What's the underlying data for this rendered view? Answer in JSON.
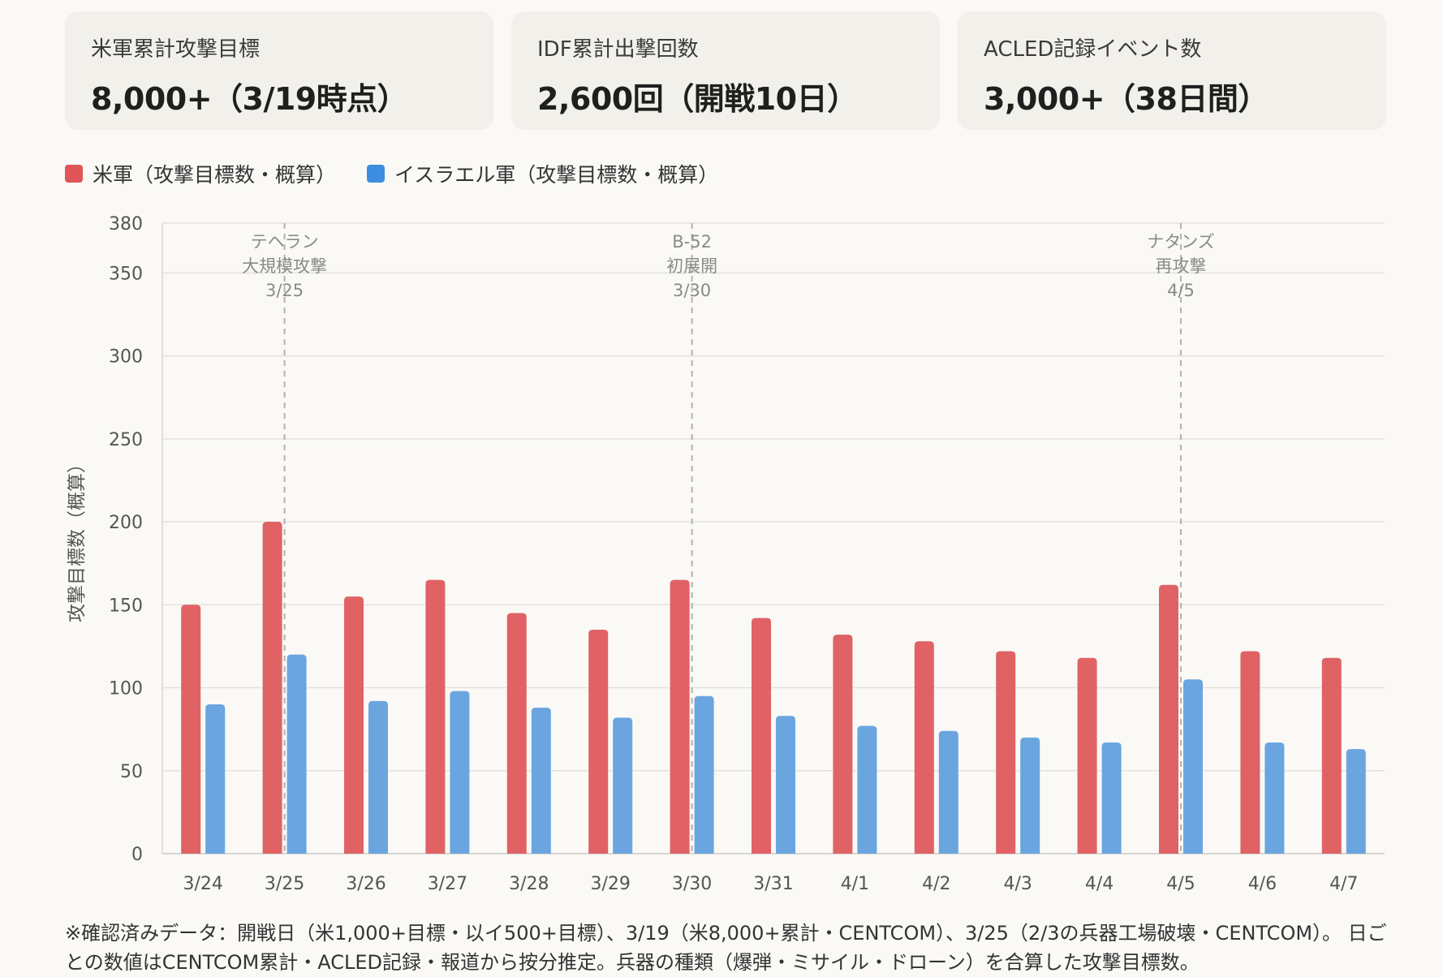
{
  "cards": [
    {
      "label": "米軍累計攻撃目標",
      "value": "8,000+（3/19時点）"
    },
    {
      "label": "IDF累計出撃回数",
      "value": "2,600回（開戦10日）"
    },
    {
      "label": "ACLED記録イベント数",
      "value": "3,000+（38日間）"
    }
  ],
  "chart_data": {
    "type": "bar",
    "categories": [
      "3/24",
      "3/25",
      "3/26",
      "3/27",
      "3/28",
      "3/29",
      "3/30",
      "3/31",
      "4/1",
      "4/2",
      "4/3",
      "4/4",
      "4/5",
      "4/6",
      "4/7"
    ],
    "series": [
      {
        "name": "米軍（攻撃目標数・概算）",
        "color": "#e06265",
        "values": [
          150,
          200,
          155,
          165,
          145,
          135,
          165,
          142,
          132,
          128,
          122,
          118,
          162,
          122,
          118
        ]
      },
      {
        "name": "イスラエル軍（攻撃目標数・概算）",
        "color": "#6aa5e0",
        "values": [
          90,
          120,
          92,
          98,
          88,
          82,
          95,
          83,
          77,
          74,
          70,
          67,
          105,
          67,
          63
        ]
      }
    ],
    "legend_colors": [
      "#e05558",
      "#3d8ee0"
    ],
    "ylabel": "攻撃目標数（概算）",
    "ylim": [
      0,
      380
    ],
    "yticks": [
      0,
      50,
      100,
      150,
      200,
      250,
      300,
      350,
      380
    ],
    "grid": true,
    "legend_placement": "top-left",
    "annotations": [
      {
        "category": "3/25",
        "lines": [
          "テヘラン",
          "大規模攻撃",
          "3/25"
        ]
      },
      {
        "category": "3/30",
        "lines": [
          "B-52",
          "初展開",
          "3/30"
        ]
      },
      {
        "category": "4/5",
        "lines": [
          "ナタンズ",
          "再攻撃",
          "4/5"
        ]
      }
    ]
  },
  "footnote": "※確認済みデータ：開戦日（米1,000+目標・以イ500+目標）、3/19（米8,000+累計・CENTCOM）、3/25（2/3の兵器工場破壊・CENTCOM）。 日ごとの数値はCENTCOM累計・ACLED記録・報道から按分推定。兵器の種類（爆弾・ミサイル・ドローン）を合算した攻撃目標数。"
}
